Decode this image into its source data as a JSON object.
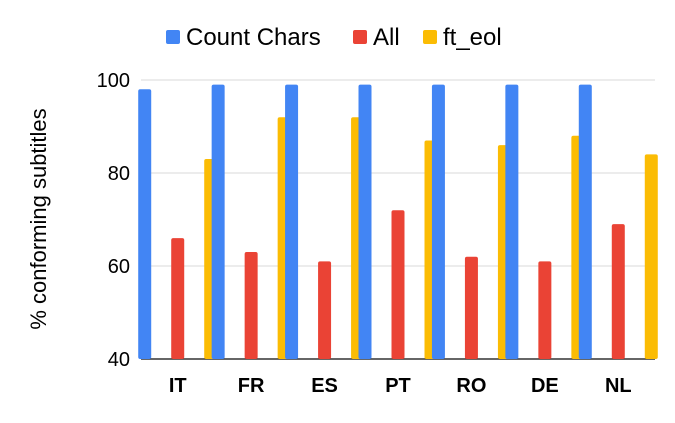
{
  "chart_data": {
    "type": "bar",
    "title": "",
    "xlabel": "",
    "ylabel": "% conforming subtitles",
    "ylim": [
      40,
      100
    ],
    "yticks": [
      40,
      60,
      80,
      100
    ],
    "grid": true,
    "legend_position": "top",
    "categories": [
      "IT",
      "FR",
      "ES",
      "PT",
      "RO",
      "DE",
      "NL"
    ],
    "series": [
      {
        "name": "Count Chars",
        "color": "#4285f4",
        "values": [
          98,
          99,
          99,
          99,
          99,
          99,
          99
        ]
      },
      {
        "name": "All",
        "color": "#ea4335",
        "values": [
          66,
          63,
          61,
          72,
          62,
          61,
          69
        ]
      },
      {
        "name": "ft_eol",
        "color": "#fbbc04",
        "values": [
          83,
          92,
          92,
          87,
          86,
          88,
          84
        ]
      }
    ]
  }
}
